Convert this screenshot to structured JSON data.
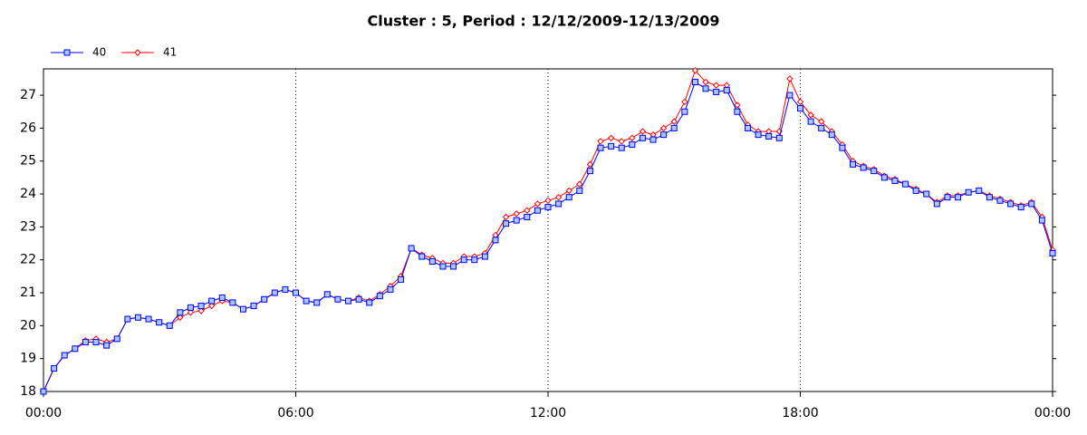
{
  "chart_data": {
    "type": "line",
    "title": "Cluster : 5, Period : 12/12/2009-12/13/2009",
    "x": [
      0,
      0.25,
      0.5,
      0.75,
      1,
      1.25,
      1.5,
      1.75,
      2,
      2.25,
      2.5,
      2.75,
      3,
      3.25,
      3.5,
      3.75,
      4,
      4.25,
      4.5,
      4.75,
      5,
      5.25,
      5.5,
      5.75,
      6,
      6.25,
      6.5,
      6.75,
      7,
      7.25,
      7.5,
      7.75,
      8,
      8.25,
      8.5,
      8.75,
      9,
      9.25,
      9.5,
      9.75,
      10,
      10.25,
      10.5,
      10.75,
      11,
      11.25,
      11.5,
      11.75,
      12,
      12.25,
      12.5,
      12.75,
      13,
      13.25,
      13.5,
      13.75,
      14,
      14.25,
      14.5,
      14.75,
      15,
      15.25,
      15.5,
      15.75,
      16,
      16.25,
      16.5,
      16.75,
      17,
      17.25,
      17.5,
      17.75,
      18,
      18.25,
      18.5,
      18.75,
      19,
      19.25,
      19.5,
      19.75,
      20,
      20.25,
      20.5,
      20.75,
      21,
      21.25,
      21.5,
      21.75,
      22,
      22.25,
      22.5,
      22.75,
      23,
      23.25,
      23.5,
      23.75,
      24
    ],
    "series": [
      {
        "name": "40",
        "color": "#0000ff",
        "marker": "square",
        "values": [
          18.0,
          18.7,
          19.1,
          19.3,
          19.5,
          19.5,
          19.4,
          19.6,
          20.2,
          20.25,
          20.2,
          20.1,
          20.0,
          20.4,
          20.55,
          20.6,
          20.75,
          20.85,
          20.7,
          20.5,
          20.6,
          20.8,
          21.0,
          21.1,
          21.0,
          20.75,
          20.7,
          20.95,
          20.8,
          20.75,
          20.8,
          20.7,
          20.9,
          21.1,
          21.4,
          22.35,
          22.1,
          21.95,
          21.8,
          21.8,
          22.0,
          22.0,
          22.1,
          22.6,
          23.1,
          23.2,
          23.3,
          23.5,
          23.6,
          23.7,
          23.9,
          24.1,
          24.7,
          25.4,
          25.45,
          25.4,
          25.5,
          25.7,
          25.65,
          25.8,
          26.0,
          26.5,
          27.4,
          27.2,
          27.1,
          27.15,
          26.5,
          26.0,
          25.8,
          25.75,
          25.7,
          27.0,
          26.6,
          26.2,
          26.0,
          25.8,
          25.4,
          24.9,
          24.8,
          24.7,
          24.5,
          24.4,
          24.3,
          24.1,
          24.0,
          23.7,
          23.9,
          23.9,
          24.05,
          24.1,
          23.9,
          23.8,
          23.7,
          23.6,
          23.7,
          23.2,
          22.2
        ]
      },
      {
        "name": "41",
        "color": "#ff0000",
        "marker": "diamond",
        "values": [
          18.0,
          18.7,
          19.1,
          19.3,
          19.55,
          19.6,
          19.5,
          19.6,
          20.2,
          20.25,
          20.2,
          20.1,
          20.0,
          20.25,
          20.4,
          20.45,
          20.6,
          20.75,
          20.7,
          20.5,
          20.6,
          20.8,
          21.0,
          21.1,
          21.0,
          20.75,
          20.7,
          20.95,
          20.8,
          20.75,
          20.85,
          20.75,
          20.95,
          21.2,
          21.5,
          22.35,
          22.15,
          22.05,
          21.9,
          21.9,
          22.1,
          22.1,
          22.2,
          22.75,
          23.3,
          23.4,
          23.5,
          23.7,
          23.8,
          23.9,
          24.1,
          24.3,
          24.9,
          25.6,
          25.7,
          25.6,
          25.7,
          25.9,
          25.8,
          26.0,
          26.2,
          26.8,
          27.75,
          27.4,
          27.3,
          27.3,
          26.7,
          26.1,
          25.9,
          25.9,
          25.9,
          27.5,
          26.8,
          26.4,
          26.2,
          25.9,
          25.5,
          25.0,
          24.85,
          24.75,
          24.55,
          24.45,
          24.3,
          24.15,
          24.0,
          23.75,
          23.95,
          23.95,
          24.05,
          24.1,
          23.95,
          23.85,
          23.75,
          23.65,
          23.75,
          23.3,
          22.3
        ]
      }
    ],
    "xlim": [
      0,
      24
    ],
    "xticks": [
      {
        "value": 0,
        "label": "00:00"
      },
      {
        "value": 6,
        "label": "06:00"
      },
      {
        "value": 12,
        "label": "12:00"
      },
      {
        "value": 18,
        "label": "18:00"
      },
      {
        "value": 24,
        "label": "00:00"
      }
    ],
    "ylim": [
      18,
      27.8
    ],
    "yticks": [
      18,
      19,
      20,
      21,
      22,
      23,
      24,
      25,
      26,
      27
    ],
    "grid": true,
    "legend": "top-left"
  }
}
